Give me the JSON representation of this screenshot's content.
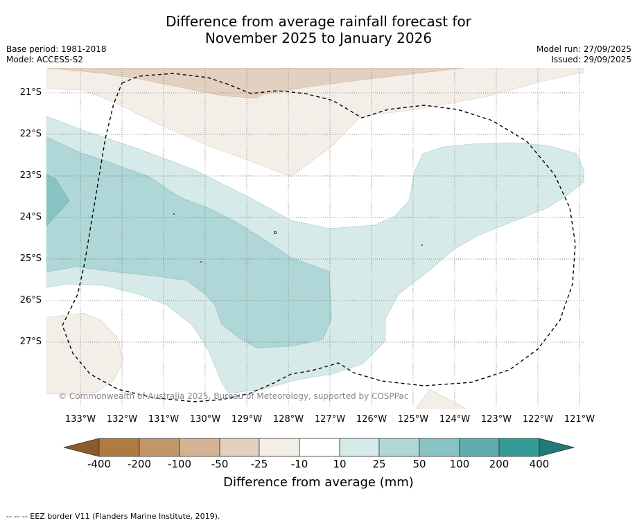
{
  "title": {
    "line1": "Difference from average rainfall forecast for",
    "line2": "November 2025 to January 2026"
  },
  "meta": {
    "base_period": "Base period: 1981-2018",
    "model": "Model: ACCESS-S2",
    "model_run": "Model run: 27/09/2025",
    "issued": "Issued: 29/09/2025"
  },
  "map": {
    "latitude_labels": [
      "21°S",
      "22°S",
      "23°S",
      "24°S",
      "25°S",
      "26°S",
      "27°S"
    ],
    "longitude_labels": [
      "133°W",
      "132°W",
      "131°W",
      "130°W",
      "129°W",
      "128°W",
      "127°W",
      "126°W",
      "125°W",
      "124°W",
      "123°W",
      "122°W",
      "121°W"
    ],
    "copyright": "© Commonwealth of Australia 2025, Bureau of Meteorology, supported by COSPPac"
  },
  "colorbar": {
    "labels": [
      "-400",
      "-200",
      "-100",
      "-50",
      "-25",
      "-10",
      "10",
      "25",
      "50",
      "100",
      "200",
      "400"
    ],
    "title": "Difference from average (mm)",
    "colors": [
      "#b07a43",
      "#c29669",
      "#d4b394",
      "#e3d0bf",
      "#f4eee9",
      "#ffffff",
      "#d6eae9",
      "#afd7d7",
      "#88c4c4",
      "#5fadad",
      "#349b99"
    ],
    "low_extend_color": "#8c5a2b",
    "high_extend_color": "#1f7a78"
  },
  "legend": {
    "eez_line": "--  --  -- EEZ border V11 (Flanders Marine Institute, 2019)."
  }
}
